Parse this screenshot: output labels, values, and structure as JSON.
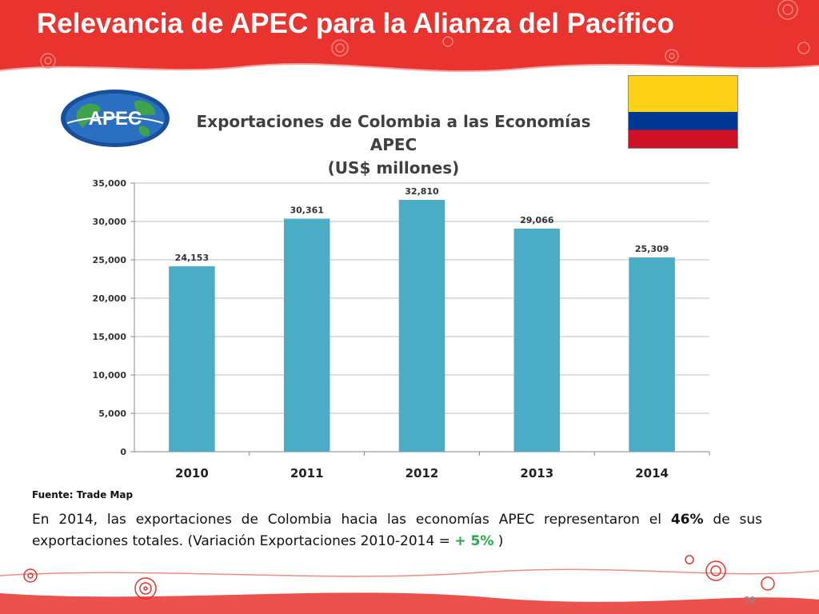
{
  "slide": {
    "title": "Relevancia de APEC para la Alianza del Pacífico",
    "page_number": "39"
  },
  "logo": {
    "text": "APEC"
  },
  "flag": {
    "colors": [
      "#FCD116",
      "#003893",
      "#CE1126"
    ]
  },
  "source": "Fuente: Trade Map",
  "summary": {
    "part1": "En 2014, las exportaciones de Colombia hacia las economías APEC representaron el ",
    "pct": "46%",
    "part2": " de sus exportaciones totales. (Variación Exportaciones 2010-2014 = ",
    "variation": "+ 5%",
    "part3": " )"
  },
  "colors": {
    "header_red": "#E8332E",
    "bar": "#4BACC6",
    "accent_green": "#22A845"
  },
  "chart_data": {
    "type": "bar",
    "title": "Exportaciones de Colombia a las Economías APEC",
    "subtitle": "(US$ millones)",
    "categories": [
      "2010",
      "2011",
      "2012",
      "2013",
      "2014"
    ],
    "values": [
      24153,
      30361,
      32810,
      29066,
      25309
    ],
    "value_labels": [
      "24,153",
      "30,361",
      "32,810",
      "29,066",
      "25,309"
    ],
    "ylim": [
      0,
      35000
    ],
    "yticks": [
      0,
      5000,
      10000,
      15000,
      20000,
      25000,
      30000,
      35000
    ],
    "ytick_labels": [
      "0",
      "5,000",
      "10,000",
      "15,000",
      "20,000",
      "25,000",
      "30,000",
      "35,000"
    ],
    "grid": true,
    "legend": "none"
  }
}
